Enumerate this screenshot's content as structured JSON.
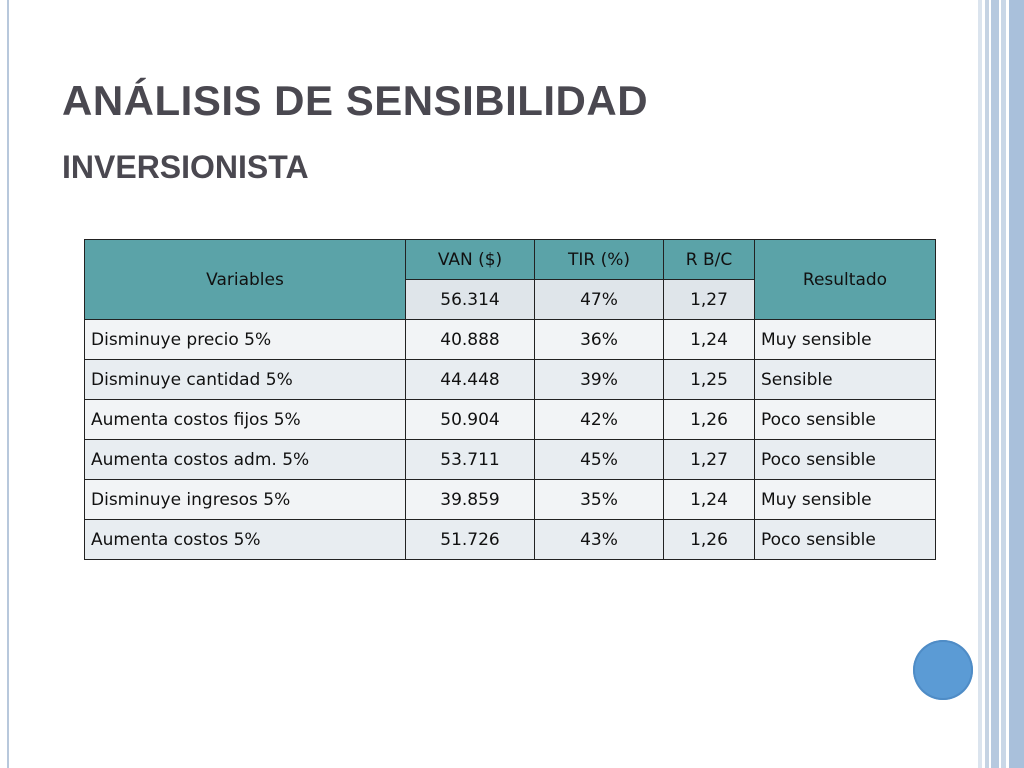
{
  "slide": {
    "title": "ANÁLISIS DE SENSIBILIDAD",
    "subtitle": "INVERSIONISTA"
  },
  "table": {
    "headers": {
      "variables": "Variables",
      "van": "VAN ($)",
      "tir": "TIR (%)",
      "rbc": "R B/C",
      "resultado": "Resultado"
    },
    "base": {
      "van": "56.314",
      "tir": "47%",
      "rbc": "1,27"
    },
    "rows": [
      {
        "variable": "Disminuye precio 5%",
        "van": "40.888",
        "tir": "36%",
        "rbc": "1,24",
        "resultado": "Muy sensible"
      },
      {
        "variable": "Disminuye cantidad 5%",
        "van": "44.448",
        "tir": "39%",
        "rbc": "1,25",
        "resultado": "Sensible"
      },
      {
        "variable": "Aumenta costos fijos 5%",
        "van": "50.904",
        "tir": "42%",
        "rbc": "1,26",
        "resultado": "Poco sensible"
      },
      {
        "variable": "Aumenta costos adm. 5%",
        "van": "53.711",
        "tir": "45%",
        "rbc": "1,27",
        "resultado": "Poco sensible"
      },
      {
        "variable": "Disminuye ingresos 5%",
        "van": "39.859",
        "tir": "35%",
        "rbc": "1,24",
        "resultado": "Muy sensible"
      },
      {
        "variable": "Aumenta costos 5%",
        "van": "51.726",
        "tir": "43%",
        "rbc": "1,26",
        "resultado": "Poco sensible"
      }
    ]
  },
  "colors": {
    "header_teal": "#5ba3a8",
    "title_text": "#4a4850",
    "accent_circle": "#5b9bd5"
  }
}
